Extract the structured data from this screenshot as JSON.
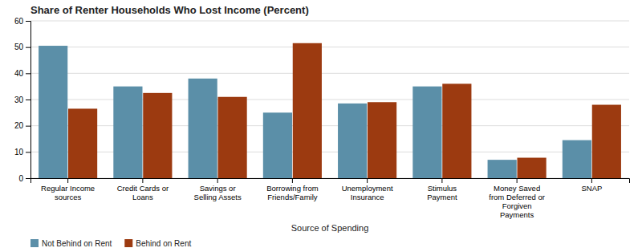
{
  "chart_data": {
    "type": "bar",
    "title": "Share of Renter Households Who Lost Income (Percent)",
    "xlabel": "Source of Spending",
    "categories": [
      "Regular Income\nsources",
      "Credit Cards or\nLoans",
      "Savings or\nSelling Assets",
      "Borrowing from\nFriends/Family",
      "Unemployment\nInsurance",
      "Stimulus\nPayment",
      "Money Saved\nfrom Deferred or\nForgiven\nPayments",
      "SNAP"
    ],
    "series": [
      {
        "name": "Not Behind on Rent",
        "color": "#5b8fa8",
        "values": [
          50.5,
          35.0,
          38.0,
          25.0,
          28.5,
          35.0,
          7.0,
          14.5
        ]
      },
      {
        "name": "Behind on Rent",
        "color": "#9c3a10",
        "values": [
          26.5,
          32.5,
          31.0,
          51.5,
          29.0,
          36.0,
          7.8,
          28.0
        ]
      }
    ],
    "ylim": [
      0,
      60
    ],
    "yticks": [
      0,
      10,
      20,
      30,
      40,
      50,
      60
    ],
    "grid": true,
    "legend": "lower left"
  }
}
